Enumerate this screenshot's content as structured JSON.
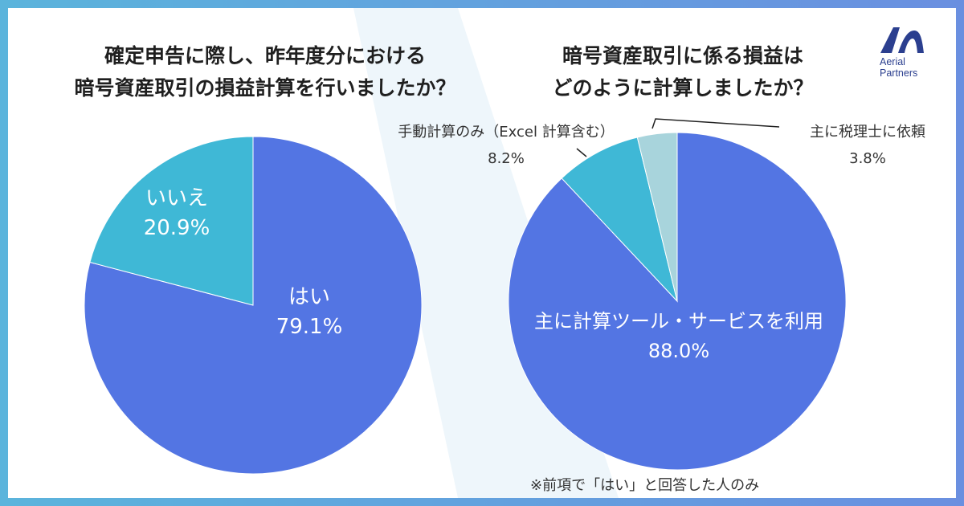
{
  "title_left": [
    "確定申告に際し、昨年度分における",
    "暗号資産取引の損益計算を行いましたか？"
  ],
  "title_right": [
    "暗号資産取引に係る損益は",
    "どのように計算しましたか？"
  ],
  "logo": {
    "line1": "Aerial",
    "line2": "Partners"
  },
  "note": "※前項で「はい」と回答した人のみ",
  "colors": {
    "blue": "#5375e3",
    "cyan": "#3fb8d6",
    "light": "#a8d4dc",
    "frame_left": "#5bb4dc",
    "frame_right": "#6a8fe0"
  },
  "chart_data": [
    {
      "type": "pie",
      "title": "確定申告に際し、昨年度分における暗号資産取引の損益計算を行いましたか？",
      "slices": [
        {
          "label": "はい",
          "value": 79.1,
          "display": "79.1%"
        },
        {
          "label": "いいえ",
          "value": 20.9,
          "display": "20.9%"
        }
      ]
    },
    {
      "type": "pie",
      "title": "暗号資産取引に係る損益はどのように計算しましたか？",
      "slices": [
        {
          "label": "主に計算ツール・サービスを利用",
          "value": 88.0,
          "display": "88.0%"
        },
        {
          "label": "手動計算のみ（Excel 計算含む）",
          "value": 8.2,
          "display": "8.2%"
        },
        {
          "label": "主に税理士に依頼",
          "value": 3.8,
          "display": "3.8%"
        }
      ]
    }
  ]
}
